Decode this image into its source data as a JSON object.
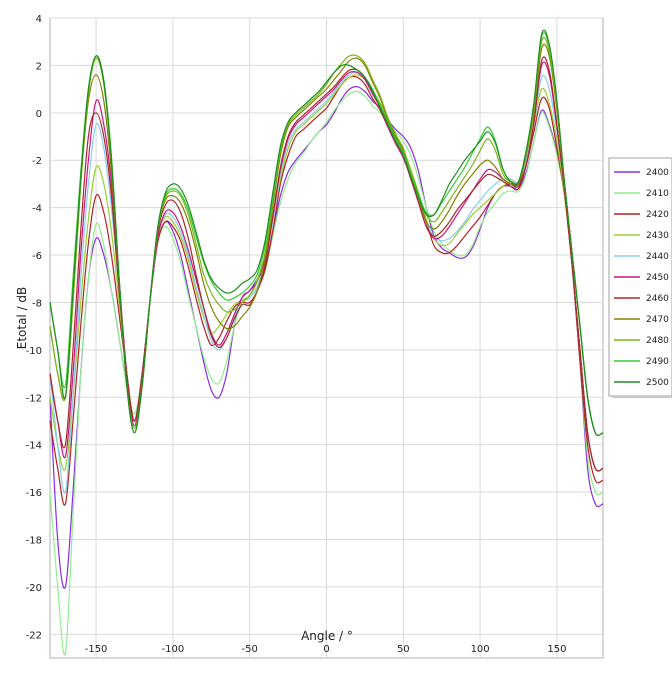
{
  "chart_data": {
    "type": "line",
    "xlabel": "Angle / °",
    "ylabel": "Etotal / dB",
    "xlim": [
      -180,
      180
    ],
    "ylim": [
      -23,
      4
    ],
    "grid": true,
    "legend_position": "right",
    "x_ticks": [
      -150,
      -100,
      -50,
      0,
      50,
      100,
      150
    ],
    "y_ticks": [
      4,
      2,
      0,
      -2,
      -4,
      -6,
      -8,
      -10,
      -12,
      -14,
      -16,
      -18,
      -20,
      -22
    ],
    "x": [
      -180,
      -175,
      -170,
      -165,
      -160,
      -155,
      -150,
      -145,
      -140,
      -135,
      -130,
      -125,
      -120,
      -115,
      -110,
      -105,
      -100,
      -95,
      -90,
      -85,
      -80,
      -75,
      -70,
      -65,
      -60,
      -55,
      -50,
      -45,
      -40,
      -35,
      -30,
      -25,
      -20,
      -15,
      -10,
      -5,
      0,
      5,
      10,
      15,
      20,
      25,
      30,
      35,
      40,
      45,
      50,
      55,
      60,
      65,
      70,
      75,
      80,
      85,
      90,
      95,
      100,
      105,
      110,
      115,
      120,
      125,
      130,
      135,
      140,
      145,
      150,
      155,
      160,
      165,
      170,
      175,
      180
    ],
    "series": [
      {
        "name": "2400",
        "color": "#8a2be2",
        "values": [
          -12,
          -18,
          -20,
          -16,
          -11,
          -7,
          -5.3,
          -6,
          -7.5,
          -9.5,
          -11.5,
          -13,
          -11,
          -8,
          -5.5,
          -4.6,
          -5,
          -6,
          -7.5,
          -9,
          -10.5,
          -11.7,
          -12,
          -11,
          -9,
          -7.8,
          -7.5,
          -7,
          -6.5,
          -5,
          -3.5,
          -2.5,
          -2,
          -1.6,
          -1.2,
          -0.8,
          -0.5,
          0,
          0.6,
          1,
          1.1,
          0.9,
          0.5,
          0.2,
          -0.3,
          -0.7,
          -1,
          -1.5,
          -2.5,
          -4,
          -5.2,
          -5.7,
          -5.9,
          -6.1,
          -6.1,
          -5.7,
          -4.9,
          -4,
          -3.4,
          -3.1,
          -3.1,
          -3.2,
          -2.5,
          -1.2,
          0.1,
          -0.5,
          -1.7,
          -3.5,
          -6.5,
          -10.5,
          -15,
          -16.5,
          -16.5
        ]
      },
      {
        "name": "2410",
        "color": "#90ee90",
        "values": [
          -16,
          -20,
          -22.8,
          -17,
          -11,
          -7,
          -4.7,
          -5.6,
          -7.5,
          -9.5,
          -11.5,
          -12.7,
          -11,
          -8,
          -5.5,
          -4.8,
          -5.3,
          -6.3,
          -7.7,
          -9,
          -10.3,
          -11.2,
          -11.4,
          -10.5,
          -9,
          -8,
          -7.8,
          -7.4,
          -6.7,
          -5.2,
          -3.8,
          -2.8,
          -2.1,
          -1.7,
          -1.2,
          -0.8,
          -0.4,
          0.1,
          0.5,
          0.8,
          0.9,
          0.7,
          0.3,
          0,
          -0.4,
          -0.8,
          -1.2,
          -1.8,
          -2.8,
          -4,
          -5,
          -5.5,
          -5.8,
          -6,
          -6,
          -5.6,
          -4.8,
          -4.2,
          -3.8,
          -3.4,
          -3.3,
          -3.3,
          -2.6,
          -1.2,
          0,
          -0.6,
          -1.8,
          -3.5,
          -6.5,
          -10.5,
          -14.5,
          -16,
          -16
        ]
      },
      {
        "name": "2420",
        "color": "#b22222",
        "values": [
          -13,
          -15,
          -16.5,
          -13,
          -9,
          -5.5,
          -3.5,
          -4.2,
          -6,
          -8.5,
          -11,
          -13,
          -11,
          -8,
          -5.5,
          -4.6,
          -4.8,
          -5.4,
          -6.5,
          -7.8,
          -9,
          -9.8,
          -9.5,
          -8.8,
          -8.2,
          -8.0,
          -8.0,
          -7.5,
          -6.6,
          -5,
          -3,
          -1.8,
          -1,
          -0.7,
          -0.4,
          -0.1,
          0.2,
          0.7,
          1.2,
          1.5,
          1.5,
          1.2,
          0.6,
          0.1,
          -0.6,
          -1.2,
          -1.8,
          -2.6,
          -3.5,
          -4.6,
          -5.6,
          -5.9,
          -5.9,
          -5.6,
          -5.2,
          -4.8,
          -4.4,
          -3.9,
          -3.4,
          -3.1,
          -3.0,
          -3.0,
          -2.2,
          -0.8,
          0.6,
          0.2,
          -1.5,
          -3.5,
          -6.5,
          -10.5,
          -14,
          -15.5,
          -15.5
        ]
      },
      {
        "name": "2430",
        "color": "#9acd32",
        "values": [
          -12,
          -14,
          -15,
          -12,
          -8,
          -4.5,
          -2.3,
          -3,
          -5,
          -8,
          -11,
          -13,
          -11,
          -8,
          -5.3,
          -4.4,
          -4.6,
          -5.2,
          -6.2,
          -7.5,
          -8.6,
          -9.3,
          -9,
          -8.5,
          -8.1,
          -7.9,
          -7.7,
          -7,
          -6,
          -4.5,
          -2.8,
          -1.5,
          -0.8,
          -0.5,
          -0.2,
          0.1,
          0.4,
          0.8,
          1.2,
          1.5,
          1.6,
          1.4,
          0.9,
          0.4,
          -0.3,
          -1,
          -1.6,
          -2.4,
          -3.4,
          -4.5,
          -5.3,
          -5.6,
          -5.5,
          -5.1,
          -4.7,
          -4.3,
          -4.0,
          -3.7,
          -3.4,
          -3.1,
          -2.9,
          -2.9,
          -2,
          -0.5,
          1,
          0.4,
          -1.2,
          -3.5,
          -6.5,
          -10,
          -13.5,
          -15,
          -15
        ]
      },
      {
        "name": "2440",
        "color": "#87ceeb",
        "values": [
          -11,
          -14,
          -16,
          -12,
          -7,
          -3,
          -0.5,
          -1.5,
          -4,
          -7.5,
          -11,
          -13,
          -11,
          -8,
          -5.3,
          -4.3,
          -4.4,
          -5.0,
          -6.0,
          -7.3,
          -8.5,
          -9.6,
          -10,
          -9.5,
          -8.6,
          -8.0,
          -7.8,
          -7.3,
          -6.3,
          -4.6,
          -2.6,
          -1.3,
          -0.7,
          -0.4,
          -0.1,
          0.2,
          0.5,
          0.9,
          1.3,
          1.6,
          1.7,
          1.4,
          0.8,
          0.3,
          -0.4,
          -1.1,
          -1.7,
          -2.6,
          -3.6,
          -4.6,
          -5.2,
          -5.4,
          -5.3,
          -5.0,
          -4.6,
          -4.1,
          -3.7,
          -3.3,
          -3.0,
          -2.8,
          -2.8,
          -2.9,
          -2,
          -0.5,
          1.5,
          1.0,
          -0.8,
          -3.3,
          -6.5,
          -10,
          -13.5,
          -15,
          -15
        ]
      },
      {
        "name": "2450",
        "color": "#c71585",
        "values": [
          -11,
          -13,
          -14.5,
          -11,
          -6,
          -2,
          0.5,
          -0.5,
          -3,
          -7,
          -11,
          -13.2,
          -11,
          -8,
          -5.3,
          -4.2,
          -4.2,
          -4.8,
          -5.8,
          -7.0,
          -8.2,
          -9.3,
          -9.8,
          -9.3,
          -8.5,
          -7.8,
          -7.5,
          -7.1,
          -6.1,
          -4.4,
          -2.4,
          -1.1,
          -0.5,
          -0.2,
          0.1,
          0.4,
          0.7,
          1.0,
          1.4,
          1.7,
          1.7,
          1.4,
          0.8,
          0.2,
          -0.6,
          -1.3,
          -1.9,
          -2.8,
          -3.8,
          -4.8,
          -5.3,
          -5.2,
          -4.8,
          -4.3,
          -3.8,
          -3.3,
          -2.8,
          -2.4,
          -2.5,
          -2.8,
          -3.0,
          -3.1,
          -2.2,
          -0.4,
          2,
          1.6,
          -0.6,
          -3.3,
          -6.5,
          -10,
          -13.5,
          -15,
          -15
        ]
      },
      {
        "name": "2460",
        "color": "#a52a2a",
        "values": [
          -11,
          -13,
          -14,
          -10,
          -5,
          -1,
          0,
          -1,
          -3.5,
          -7.5,
          -11,
          -13,
          -11,
          -8,
          -5.1,
          -3.9,
          -3.7,
          -4.2,
          -5.3,
          -6.8,
          -8.2,
          -9.4,
          -9.9,
          -9.5,
          -8.7,
          -8.1,
          -8.1,
          -7.5,
          -6.4,
          -4.4,
          -2.3,
          -1.0,
          -0.4,
          -0.1,
          0.2,
          0.5,
          0.8,
          1.1,
          1.5,
          1.8,
          1.8,
          1.5,
          0.9,
          0.3,
          -0.5,
          -1.2,
          -1.8,
          -2.8,
          -3.8,
          -4.8,
          -5.2,
          -5.0,
          -4.6,
          -4.1,
          -3.7,
          -3.3,
          -2.9,
          -2.6,
          -2.7,
          -2.9,
          -3.1,
          -3.2,
          -2.2,
          -0.4,
          2.2,
          1.8,
          -0.5,
          -3.3,
          -6.5,
          -10,
          -13.5,
          -15,
          -15
        ]
      },
      {
        "name": "2470",
        "color": "#808000",
        "values": [
          -9,
          -11,
          -12,
          -8,
          -3,
          0.5,
          1.6,
          0.5,
          -2.5,
          -7,
          -11.5,
          -13.5,
          -11.5,
          -8,
          -5,
          -3.7,
          -3.5,
          -3.8,
          -4.6,
          -5.8,
          -7.2,
          -8.2,
          -8.8,
          -9.1,
          -9.0,
          -8.6,
          -8.2,
          -7.5,
          -6.2,
          -4.0,
          -1.8,
          -0.6,
          -0.2,
          0.1,
          0.4,
          0.7,
          1.0,
          1.4,
          1.8,
          2.2,
          2.3,
          2.0,
          1.3,
          0.6,
          -0.3,
          -1.0,
          -1.6,
          -2.6,
          -3.6,
          -4.6,
          -4.9,
          -4.6,
          -4.1,
          -3.5,
          -3.0,
          -2.6,
          -2.2,
          -2.0,
          -2.3,
          -2.8,
          -3.0,
          -3.0,
          -1.8,
          0,
          2.7,
          2.4,
          0.1,
          -3,
          -6,
          -9,
          -12,
          -13.5,
          -13.5
        ]
      },
      {
        "name": "2480",
        "color": "#7cb518",
        "values": [
          -9,
          -11,
          -12,
          -8,
          -3,
          0.8,
          2.3,
          1.2,
          -2,
          -7,
          -11.5,
          -13.3,
          -11.5,
          -8,
          -5,
          -3.6,
          -3.3,
          -3.5,
          -4.3,
          -5.5,
          -6.8,
          -7.6,
          -8.1,
          -8.4,
          -8.3,
          -8.0,
          -7.7,
          -7.1,
          -5.9,
          -3.8,
          -1.6,
          -0.5,
          -0.1,
          0.2,
          0.5,
          0.8,
          1.2,
          1.7,
          2.1,
          2.4,
          2.4,
          2.1,
          1.4,
          0.7,
          -0.2,
          -0.9,
          -1.5,
          -2.5,
          -3.4,
          -4.3,
          -4.6,
          -4.2,
          -3.7,
          -3.2,
          -2.7,
          -2.2,
          -1.6,
          -1.1,
          -1.6,
          -2.6,
          -2.9,
          -2.9,
          -1.7,
          0.2,
          3,
          2.6,
          0.3,
          -3,
          -6,
          -9,
          -12,
          -13.5,
          -13.5
        ]
      },
      {
        "name": "2490",
        "color": "#32cd32",
        "values": [
          -8,
          -10,
          -11.5,
          -7,
          -2.5,
          1,
          2.4,
          1.4,
          -1.8,
          -7,
          -11.5,
          -13.5,
          -11.5,
          -8,
          -4.9,
          -3.5,
          -3.2,
          -3.4,
          -4.1,
          -5.2,
          -6.3,
          -7.1,
          -7.6,
          -7.9,
          -7.8,
          -7.6,
          -7.3,
          -6.8,
          -5.6,
          -3.6,
          -1.5,
          -0.4,
          0,
          0.3,
          0.6,
          0.9,
          1.3,
          1.7,
          2.0,
          2.0,
          1.8,
          1.5,
          1.0,
          0.3,
          -0.4,
          -1.1,
          -1.7,
          -2.6,
          -3.5,
          -4.2,
          -4.3,
          -3.8,
          -3.3,
          -2.8,
          -2.3,
          -1.7,
          -1.1,
          -0.6,
          -1.2,
          -2.4,
          -2.9,
          -2.9,
          -1.6,
          0.4,
          3.2,
          2.8,
          0.4,
          -3,
          -6,
          -9,
          -12,
          -13.5,
          -13.5
        ]
      },
      {
        "name": "2500",
        "color": "#228b22",
        "values": [
          -8,
          -10,
          -12,
          -7.5,
          -2.8,
          1,
          2.4,
          1.3,
          -2,
          -7,
          -11.5,
          -13.5,
          -11.5,
          -8,
          -4.9,
          -3.4,
          -3.0,
          -3.2,
          -3.9,
          -5.0,
          -6.2,
          -7.0,
          -7.4,
          -7.6,
          -7.5,
          -7.2,
          -7.0,
          -6.6,
          -5.4,
          -3.4,
          -1.4,
          -0.4,
          0,
          0.3,
          0.6,
          0.9,
          1.3,
          1.7,
          2.0,
          2.0,
          1.8,
          1.5,
          0.9,
          0.2,
          -0.5,
          -1.2,
          -1.8,
          -2.7,
          -3.6,
          -4.3,
          -4.3,
          -3.7,
          -3.0,
          -2.5,
          -2.0,
          -1.6,
          -1.2,
          -0.8,
          -1.3,
          -2.4,
          -2.9,
          -2.9,
          -1.6,
          0.4,
          3.3,
          2.9,
          0.5,
          -3,
          -6,
          -9,
          -12,
          -13.5,
          -13.5
        ]
      }
    ]
  }
}
